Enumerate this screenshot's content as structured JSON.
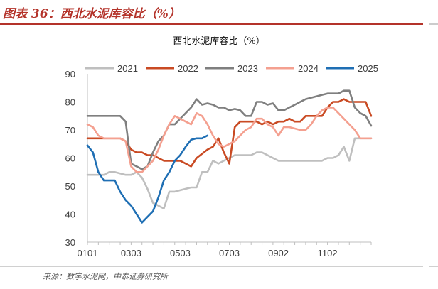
{
  "figure": {
    "title": "图表 36：西北水泥库容比（%）",
    "source": "来源：数字水泥网，中泰证券研究所"
  },
  "chart_data": {
    "type": "line",
    "title": "西北水泥库容比（%）",
    "xlabel": "",
    "ylabel": "",
    "x_unit": "week index (52 weekly points, Jan 1 to late Dec, labels MMDD)",
    "x_tick_labels": [
      "0101",
      "0303",
      "0503",
      "0703",
      "0902",
      "1102"
    ],
    "x_tick_positions": [
      0,
      8,
      17,
      26,
      35,
      44
    ],
    "x_range": [
      0,
      52
    ],
    "ylim": [
      30,
      90
    ],
    "yticks": [
      30,
      40,
      50,
      60,
      70,
      80,
      90
    ],
    "grid": false,
    "legend_position": "top",
    "series": [
      {
        "name": "2021",
        "color": "#bfbfbf",
        "values": [
          54,
          54,
          54,
          54,
          55,
          55,
          54.5,
          54,
          54,
          55,
          53,
          49,
          44,
          43,
          42,
          48,
          48,
          48.5,
          49,
          49.5,
          49.5,
          55,
          55,
          59,
          58,
          59,
          60,
          61,
          61,
          61,
          61,
          62,
          62,
          61,
          60,
          59,
          59,
          59,
          59,
          59,
          59,
          59,
          59,
          59,
          60,
          60,
          61,
          64,
          59,
          67,
          67,
          67,
          67
        ]
      },
      {
        "name": "2022",
        "color": "#c94a23",
        "values": [
          67,
          67,
          67,
          67,
          67,
          67,
          67,
          66,
          63,
          62,
          62,
          61,
          61,
          60,
          59,
          59,
          59,
          59,
          58,
          57,
          60,
          61.5,
          63,
          64,
          67,
          62,
          58,
          71,
          73,
          73,
          73,
          73,
          72,
          73,
          72,
          73,
          73,
          74,
          73,
          73,
          75,
          75,
          75,
          75,
          78,
          80,
          80,
          81,
          80,
          80,
          80,
          80,
          75
        ]
      },
      {
        "name": "2023",
        "color": "#7f7f7f",
        "values": [
          75,
          75,
          75,
          75,
          75,
          75,
          75,
          73,
          58,
          57,
          56,
          57,
          62,
          66,
          68,
          72,
          72,
          74,
          76,
          78,
          81,
          79,
          79.5,
          79,
          78,
          78,
          77,
          77.5,
          77,
          75,
          75,
          80,
          80,
          79,
          79.5,
          77,
          77,
          78,
          79,
          80,
          81,
          81.5,
          82,
          82.5,
          83,
          83,
          83,
          84,
          84,
          78,
          76,
          75,
          71.5
        ]
      },
      {
        "name": "2024",
        "color": "#f4a090",
        "values": [
          72,
          71,
          68,
          67,
          67,
          67,
          67,
          66,
          57,
          55,
          55,
          57,
          59,
          63,
          68,
          72,
          75,
          74,
          73,
          72,
          76,
          75,
          72,
          68,
          65,
          64,
          65,
          66,
          68,
          70,
          71,
          74,
          74,
          72,
          71,
          68,
          71,
          71,
          70.5,
          70,
          70,
          72,
          75,
          77,
          78,
          78,
          76,
          74,
          72,
          70,
          67,
          67,
          67
        ]
      },
      {
        "name": "2025",
        "color": "#1f6fb4",
        "values": [
          64.5,
          62,
          55,
          52,
          52,
          52,
          48,
          45,
          43,
          40,
          37,
          39,
          41,
          46,
          52,
          55,
          59,
          61,
          64,
          66.5,
          67,
          67,
          68
        ]
      }
    ]
  }
}
